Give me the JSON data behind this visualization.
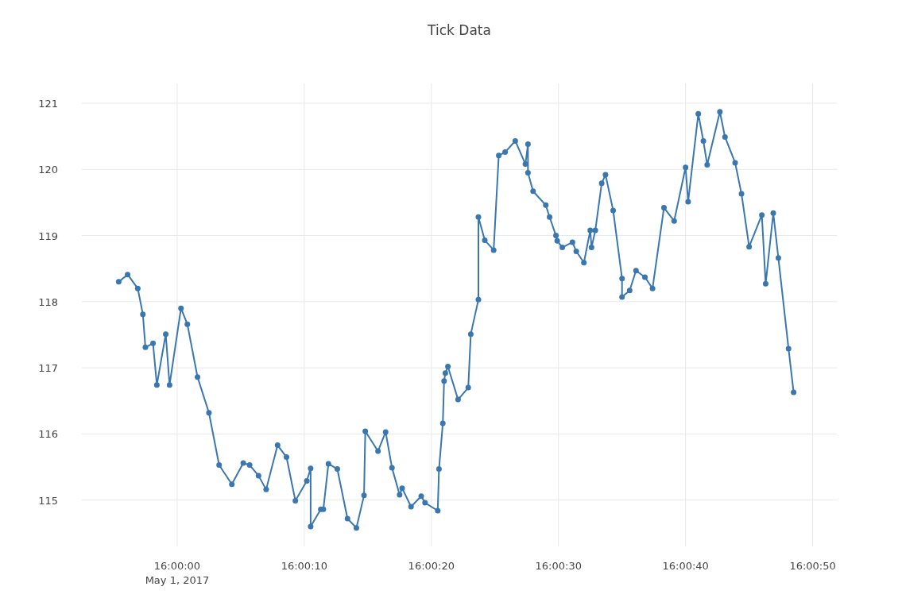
{
  "chart_data": {
    "type": "line",
    "title": "Tick Data",
    "x": [
      "2017-05-01T15:59:55.4",
      "2017-05-01T15:59:56.1",
      "2017-05-01T15:59:56.9",
      "2017-05-01T15:59:57.3",
      "2017-05-01T15:59:57.5",
      "2017-05-01T15:59:58.1",
      "2017-05-01T15:59:58.4",
      "2017-05-01T15:59:59.1",
      "2017-05-01T15:59:59.4",
      "2017-05-01T16:00:00.3",
      "2017-05-01T16:00:00.8",
      "2017-05-01T16:00:01.6",
      "2017-05-01T16:00:02.5",
      "2017-05-01T16:00:03.3",
      "2017-05-01T16:00:04.3",
      "2017-05-01T16:00:05.2",
      "2017-05-01T16:00:05.7",
      "2017-05-01T16:00:06.4",
      "2017-05-01T16:00:07.0",
      "2017-05-01T16:00:07.9",
      "2017-05-01T16:00:08.6",
      "2017-05-01T16:00:09.3",
      "2017-05-01T16:00:10.2",
      "2017-05-01T16:00:10.5",
      "2017-05-01T16:00:10.5",
      "2017-05-01T16:00:11.3",
      "2017-05-01T16:00:11.5",
      "2017-05-01T16:00:11.9",
      "2017-05-01T16:00:12.6",
      "2017-05-01T16:00:13.4",
      "2017-05-01T16:00:14.1",
      "2017-05-01T16:00:14.7",
      "2017-05-01T16:00:14.8",
      "2017-05-01T16:00:15.8",
      "2017-05-01T16:00:16.4",
      "2017-05-01T16:00:16.9",
      "2017-05-01T16:00:17.5",
      "2017-05-01T16:00:17.7",
      "2017-05-01T16:00:18.4",
      "2017-05-01T16:00:19.2",
      "2017-05-01T16:00:19.5",
      "2017-05-01T16:00:20.5",
      "2017-05-01T16:00:20.6",
      "2017-05-01T16:00:20.9",
      "2017-05-01T16:00:21.0",
      "2017-05-01T16:00:21.1",
      "2017-05-01T16:00:21.3",
      "2017-05-01T16:00:22.1",
      "2017-05-01T16:00:22.9",
      "2017-05-01T16:00:23.1",
      "2017-05-01T16:00:23.7",
      "2017-05-01T16:00:23.7",
      "2017-05-01T16:00:24.2",
      "2017-05-01T16:00:24.9",
      "2017-05-01T16:00:25.3",
      "2017-05-01T16:00:25.8",
      "2017-05-01T16:00:26.6",
      "2017-05-01T16:00:27.4",
      "2017-05-01T16:00:27.6",
      "2017-05-01T16:00:27.6",
      "2017-05-01T16:00:28.0",
      "2017-05-01T16:00:29.0",
      "2017-05-01T16:00:29.3",
      "2017-05-01T16:00:29.8",
      "2017-05-01T16:00:29.9",
      "2017-05-01T16:00:30.3",
      "2017-05-01T16:00:31.1",
      "2017-05-01T16:00:31.4",
      "2017-05-01T16:00:32.0",
      "2017-05-01T16:00:32.5",
      "2017-05-01T16:00:32.6",
      "2017-05-01T16:00:32.9",
      "2017-05-01T16:00:33.4",
      "2017-05-01T16:00:33.7",
      "2017-05-01T16:00:34.3",
      "2017-05-01T16:00:35.0",
      "2017-05-01T16:00:35.0",
      "2017-05-01T16:00:35.6",
      "2017-05-01T16:00:36.1",
      "2017-05-01T16:00:36.8",
      "2017-05-01T16:00:37.4",
      "2017-05-01T16:00:38.3",
      "2017-05-01T16:00:39.1",
      "2017-05-01T16:00:40.0",
      "2017-05-01T16:00:40.2",
      "2017-05-01T16:00:41.0",
      "2017-05-01T16:00:41.4",
      "2017-05-01T16:00:41.7",
      "2017-05-01T16:00:42.7",
      "2017-05-01T16:00:43.1",
      "2017-05-01T16:00:43.9",
      "2017-05-01T16:00:44.4",
      "2017-05-01T16:00:45.0",
      "2017-05-01T16:00:46.0",
      "2017-05-01T16:00:46.3",
      "2017-05-01T16:00:46.9",
      "2017-05-01T16:00:47.3",
      "2017-05-01T16:00:48.1",
      "2017-05-01T16:00:48.5"
    ],
    "series": [
      {
        "color": "#3a77b0",
        "values": [
          118.3,
          118.41,
          118.2,
          117.81,
          117.31,
          117.37,
          116.74,
          117.51,
          116.74,
          117.9,
          117.66,
          116.86,
          116.32,
          115.53,
          115.24,
          115.56,
          115.53,
          115.37,
          115.16,
          115.83,
          115.65,
          114.99,
          115.29,
          115.48,
          114.6,
          114.86,
          114.86,
          115.55,
          115.47,
          114.72,
          114.58,
          115.07,
          116.04,
          115.74,
          116.03,
          115.49,
          115.08,
          115.18,
          114.9,
          115.06,
          114.96,
          114.84,
          115.47,
          116.16,
          116.8,
          116.92,
          117.02,
          116.52,
          116.7,
          117.51,
          118.03,
          119.28,
          118.93,
          118.78,
          120.21,
          120.26,
          120.43,
          120.08,
          120.38,
          119.95,
          119.67,
          119.46,
          119.28,
          119.0,
          118.92,
          118.82,
          118.9,
          118.76,
          118.59,
          119.08,
          118.82,
          119.08,
          119.79,
          119.92,
          119.38,
          118.35,
          118.07,
          118.17,
          118.47,
          118.37,
          118.2,
          119.42,
          119.22,
          120.03,
          119.51,
          120.84,
          120.43,
          120.07,
          120.87,
          120.49,
          120.1,
          119.63,
          118.83,
          119.31,
          118.27,
          119.34,
          118.66,
          117.29,
          116.63
        ]
      }
    ],
    "xlim": [
      "2017-05-01T15:59:52.5",
      "2017-05-01T16:00:51.9"
    ],
    "xticks": [
      {
        "value": "2017-05-01T16:00:00",
        "label": "16:00:00\nMay 1, 2017"
      },
      {
        "value": "2017-05-01T16:00:10",
        "label": "16:00:10"
      },
      {
        "value": "2017-05-01T16:00:20",
        "label": "16:00:20"
      },
      {
        "value": "2017-05-01T16:00:30",
        "label": "16:00:30"
      },
      {
        "value": "2017-05-01T16:00:40",
        "label": "16:00:40"
      },
      {
        "value": "2017-05-01T16:00:50",
        "label": "16:00:50"
      }
    ],
    "ylim": [
      114.3,
      121.3
    ],
    "yticks": [
      115,
      116,
      117,
      118,
      119,
      120,
      121
    ],
    "grid": true,
    "marker": "circle",
    "line_style": "solid"
  }
}
